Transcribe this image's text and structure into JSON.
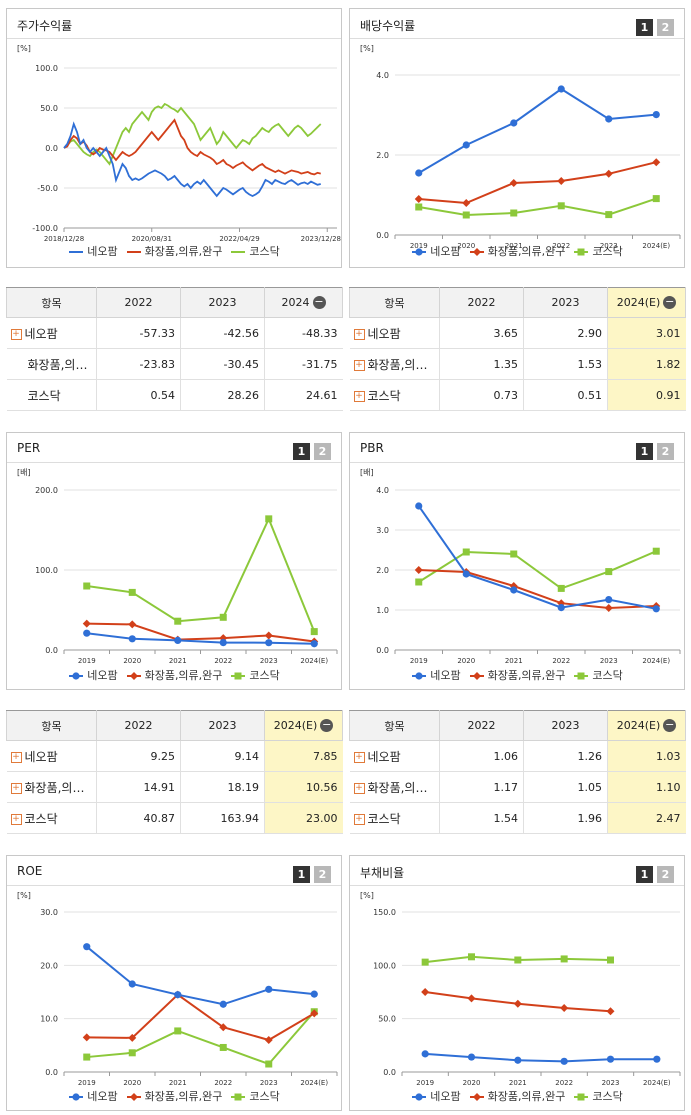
{
  "legend": [
    "네오팜",
    "화장품,의류,완구",
    "코스닥"
  ],
  "colors": [
    "#2f6fd6",
    "#d2401a",
    "#8cc83a"
  ],
  "pager": [
    "1",
    "2"
  ],
  "panels": {
    "stock": {
      "title": "주가수익률",
      "unit": "[%]",
      "chart_data": {
        "type": "line",
        "title": "주가수익률",
        "ylabel": "[%]",
        "ylim": [
          -100,
          100
        ],
        "yticks": [
          "100.0",
          "50.0",
          "0.0",
          "-50.0",
          "-100.0"
        ],
        "ytick_values": [
          100,
          50,
          0,
          -50,
          -100
        ],
        "xticks": [
          "2018/12/28",
          "2020/08/31",
          "2022/04/29",
          "2023/12/28"
        ],
        "xtick_pos": [
          0,
          27,
          54,
          81
        ],
        "xrange": [
          0,
          84
        ],
        "series": [
          {
            "name": "네오팜",
            "values": [
              0,
              5,
              15,
              30,
              20,
              5,
              10,
              0,
              -5,
              0,
              -5,
              -10,
              -5,
              0,
              -10,
              -20,
              -40,
              -30,
              -20,
              -25,
              -35,
              -40,
              -38,
              -40,
              -38,
              -35,
              -32,
              -30,
              -28,
              -30,
              -32,
              -35,
              -40,
              -38,
              -35,
              -40,
              -45,
              -48,
              -45,
              -50,
              -45,
              -42,
              -45,
              -40,
              -45,
              -50,
              -55,
              -60,
              -55,
              -50,
              -52,
              -55,
              -58,
              -55,
              -52,
              -50,
              -55,
              -58,
              -60,
              -58,
              -55,
              -48,
              -40,
              -42,
              -45,
              -40,
              -42,
              -44,
              -45,
              -42,
              -40,
              -43,
              -46,
              -44,
              -43,
              -45,
              -42,
              -44,
              -46,
              -45
            ]
          },
          {
            "name": "화장품,의류,완구",
            "values": [
              0,
              2,
              10,
              15,
              12,
              5,
              8,
              3,
              -5,
              -8,
              -5,
              0,
              -2,
              -3,
              -5,
              -10,
              -15,
              -10,
              -5,
              -8,
              -10,
              -8,
              -5,
              0,
              5,
              10,
              15,
              20,
              15,
              10,
              15,
              20,
              25,
              30,
              35,
              25,
              15,
              10,
              0,
              -5,
              -8,
              -10,
              -5,
              -8,
              -10,
              -12,
              -15,
              -20,
              -18,
              -15,
              -20,
              -22,
              -25,
              -22,
              -20,
              -18,
              -22,
              -25,
              -28,
              -25,
              -22,
              -20,
              -24,
              -26,
              -28,
              -30,
              -28,
              -30,
              -32,
              -30,
              -28,
              -29,
              -30,
              -32,
              -31,
              -30,
              -32,
              -33,
              -31,
              -32
            ]
          },
          {
            "name": "코스닥",
            "values": [
              0,
              3,
              8,
              10,
              5,
              0,
              -5,
              -8,
              -10,
              -5,
              -2,
              -5,
              -10,
              -15,
              -20,
              -10,
              0,
              10,
              20,
              25,
              20,
              30,
              35,
              40,
              45,
              40,
              35,
              45,
              50,
              52,
              50,
              55,
              53,
              50,
              48,
              45,
              50,
              45,
              40,
              35,
              30,
              20,
              10,
              15,
              20,
              25,
              15,
              5,
              10,
              20,
              15,
              10,
              5,
              0,
              5,
              10,
              8,
              5,
              12,
              15,
              20,
              25,
              22,
              20,
              25,
              28,
              30,
              25,
              20,
              15,
              20,
              25,
              28,
              25,
              20,
              15,
              18,
              22,
              26,
              30
            ]
          }
        ]
      }
    },
    "dividend": {
      "title": "배당수익률",
      "unit": "[%]",
      "chart_data": {
        "type": "line",
        "title": "배당수익률",
        "ylabel": "[%]",
        "ylim": [
          0,
          4
        ],
        "yticks": [
          "4.0",
          "2.0",
          "0.0"
        ],
        "ytick_values": [
          4,
          2,
          0
        ],
        "categories": [
          "2019",
          "2020",
          "2021",
          "2022",
          "2023",
          "2024(E)"
        ],
        "series": [
          {
            "name": "네오팜",
            "values": [
              1.55,
              2.25,
              2.8,
              3.65,
              2.9,
              3.01
            ]
          },
          {
            "name": "화장품,의류,완구",
            "values": [
              0.9,
              0.8,
              1.3,
              1.35,
              1.53,
              1.82
            ]
          },
          {
            "name": "코스닥",
            "values": [
              0.7,
              0.5,
              0.55,
              0.73,
              0.51,
              0.91
            ]
          }
        ]
      }
    },
    "per": {
      "title": "PER",
      "unit": "[배]",
      "chart_data": {
        "type": "line",
        "title": "PER",
        "ylabel": "[배]",
        "ylim": [
          0,
          200
        ],
        "yticks": [
          "200.0",
          "100.0",
          "0.0"
        ],
        "ytick_values": [
          200,
          100,
          0
        ],
        "categories": [
          "2019",
          "2020",
          "2021",
          "2022",
          "2023",
          "2024(E)"
        ],
        "series": [
          {
            "name": "네오팜",
            "values": [
              21,
              14,
              12,
              9.25,
              9.14,
              7.85
            ]
          },
          {
            "name": "화장품,의류,완구",
            "values": [
              33,
              32,
              13,
              14.91,
              18.19,
              10.56
            ]
          },
          {
            "name": "코스닥",
            "values": [
              80,
              72,
              36,
              40.87,
              163.94,
              23.0
            ]
          }
        ]
      }
    },
    "pbr": {
      "title": "PBR",
      "unit": "[배]",
      "chart_data": {
        "type": "line",
        "title": "PBR",
        "ylabel": "[배]",
        "ylim": [
          0,
          4
        ],
        "yticks": [
          "4.0",
          "3.0",
          "2.0",
          "1.0",
          "0.0"
        ],
        "ytick_values": [
          4,
          3,
          2,
          1,
          0
        ],
        "categories": [
          "2019",
          "2020",
          "2021",
          "2022",
          "2023",
          "2024(E)"
        ],
        "series": [
          {
            "name": "네오팜",
            "values": [
              3.6,
              1.9,
              1.5,
              1.06,
              1.26,
              1.03
            ]
          },
          {
            "name": "화장품,의류,완구",
            "values": [
              2.0,
              1.95,
              1.6,
              1.17,
              1.05,
              1.1
            ]
          },
          {
            "name": "코스닥",
            "values": [
              1.7,
              2.45,
              2.4,
              1.54,
              1.96,
              2.47
            ]
          }
        ]
      }
    },
    "roe": {
      "title": "ROE",
      "unit": "[%]",
      "chart_data": {
        "type": "line",
        "title": "ROE",
        "ylabel": "[%]",
        "ylim": [
          0,
          30
        ],
        "yticks": [
          "30.0",
          "20.0",
          "10.0",
          "0.0"
        ],
        "ytick_values": [
          30,
          20,
          10,
          0
        ],
        "categories": [
          "2019",
          "2020",
          "2021",
          "2022",
          "2023",
          "2024(E)"
        ],
        "series": [
          {
            "name": "네오팜",
            "values": [
              23.5,
              16.5,
              14.5,
              12.7,
              15.5,
              14.6
            ]
          },
          {
            "name": "화장품,의류,완구",
            "values": [
              6.5,
              6.4,
              14.5,
              8.4,
              6.0,
              11.0
            ]
          },
          {
            "name": "코스닥",
            "values": [
              2.8,
              3.6,
              7.7,
              4.6,
              1.5,
              11.3
            ]
          }
        ]
      }
    },
    "debt": {
      "title": "부채비율",
      "unit": "[%]",
      "chart_data": {
        "type": "line",
        "title": "부채비율",
        "ylabel": "[%]",
        "ylim": [
          0,
          150
        ],
        "yticks": [
          "150.0",
          "100.0",
          "50.0",
          "0.0"
        ],
        "ytick_values": [
          150,
          100,
          50,
          0
        ],
        "categories": [
          "2019",
          "2020",
          "2021",
          "2022",
          "2023",
          "2024(E)"
        ],
        "series": [
          {
            "name": "네오팜",
            "values": [
              17,
              14,
              11,
              10,
              12,
              12
            ]
          },
          {
            "name": "화장품,의류,완구",
            "values": [
              75,
              69,
              64,
              60,
              57,
              null
            ]
          },
          {
            "name": "코스닥",
            "values": [
              103,
              108,
              105,
              106,
              105,
              null
            ]
          }
        ]
      }
    }
  },
  "tables": {
    "stock": {
      "header": [
        "항목",
        "2022",
        "2023",
        "2024"
      ],
      "rows": [
        {
          "name": "네오팜",
          "plus": "+",
          "values": [
            "-57.33",
            "-42.56",
            "-48.33"
          ]
        },
        {
          "name": "화장품,의…",
          "plus": "",
          "values": [
            "-23.83",
            "-30.45",
            "-31.75"
          ]
        },
        {
          "name": "코스닥",
          "plus": "",
          "values": [
            "0.54",
            "28.26",
            "24.61"
          ]
        }
      ]
    },
    "dividend": {
      "header": [
        "항목",
        "2022",
        "2023",
        "2024(E)"
      ],
      "rows": [
        {
          "name": "네오팜",
          "plus": "+",
          "values": [
            "3.65",
            "2.90",
            "3.01"
          ]
        },
        {
          "name": "화장품,의…",
          "plus": "+",
          "values": [
            "1.35",
            "1.53",
            "1.82"
          ]
        },
        {
          "name": "코스닥",
          "plus": "+",
          "values": [
            "0.73",
            "0.51",
            "0.91"
          ]
        }
      ]
    },
    "per": {
      "header": [
        "항목",
        "2022",
        "2023",
        "2024(E)"
      ],
      "rows": [
        {
          "name": "네오팜",
          "plus": "+",
          "values": [
            "9.25",
            "9.14",
            "7.85"
          ]
        },
        {
          "name": "화장품,의…",
          "plus": "+",
          "values": [
            "14.91",
            "18.19",
            "10.56"
          ]
        },
        {
          "name": "코스닥",
          "plus": "+",
          "values": [
            "40.87",
            "163.94",
            "23.00"
          ]
        }
      ]
    },
    "pbr": {
      "header": [
        "항목",
        "2022",
        "2023",
        "2024(E)"
      ],
      "rows": [
        {
          "name": "네오팜",
          "plus": "+",
          "values": [
            "1.06",
            "1.26",
            "1.03"
          ]
        },
        {
          "name": "화장품,의…",
          "plus": "+",
          "values": [
            "1.17",
            "1.05",
            "1.10"
          ]
        },
        {
          "name": "코스닥",
          "plus": "+",
          "values": [
            "1.54",
            "1.96",
            "2.47"
          ]
        }
      ]
    }
  }
}
